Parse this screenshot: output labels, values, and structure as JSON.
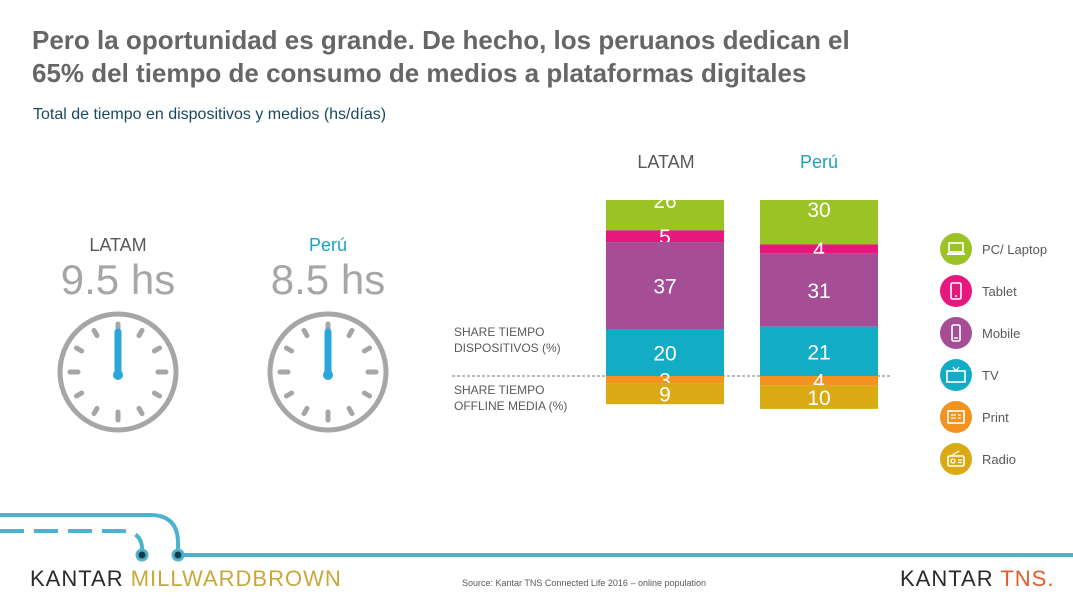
{
  "title_line1": "Pero la oportunidad es grande. De hecho, los peruanos dedican el",
  "title_line2": "65% del tiempo de consumo de medios a plataformas digitales",
  "subtitle": "Total de tiempo en dispositivos y medios  (hs/días)",
  "clocks": [
    {
      "label": "LATAM",
      "hours": "9.5 hs",
      "label_color": "#595959"
    },
    {
      "label": "Perú",
      "hours": "8.5 hs",
      "label_color": "#1aa3bf"
    }
  ],
  "chart_data": {
    "type": "bar",
    "stacked": true,
    "unit": "%",
    "categories": [
      "LATAM",
      "Perú"
    ],
    "series": [
      {
        "name": "PC/ Laptop",
        "color": "#9bc326",
        "values": [
          26,
          30
        ]
      },
      {
        "name": "Tablet",
        "color": "#e6187d",
        "values": [
          5,
          4
        ]
      },
      {
        "name": "Mobile",
        "color": "#a54e96",
        "values": [
          37,
          31
        ]
      },
      {
        "name": "TV",
        "color": "#12acc5",
        "values": [
          20,
          21
        ]
      },
      {
        "name": "Print",
        "color": "#f29220",
        "values": [
          3,
          4
        ]
      },
      {
        "name": "Radio",
        "color": "#d9aa14",
        "values": [
          9,
          10
        ]
      }
    ],
    "group_labels": [
      "SHARE TIEMPO\nDISPOSITIVOS (%)",
      "SHARE TIEMPO\nOFFLINE MEDIA (%)"
    ],
    "category_label_colors": [
      "#595959",
      "#1aa3bf"
    ]
  },
  "legend": [
    {
      "label": "PC/ Laptop",
      "icon": "laptop-icon",
      "color": "#9bc326"
    },
    {
      "label": "Tablet",
      "icon": "tablet-icon",
      "color": "#e6187d"
    },
    {
      "label": "Mobile",
      "icon": "mobile-icon",
      "color": "#a54e96"
    },
    {
      "label": "TV",
      "icon": "tv-icon",
      "color": "#12acc5"
    },
    {
      "label": "Print",
      "icon": "newspaper-icon",
      "color": "#f29220"
    },
    {
      "label": "Radio",
      "icon": "radio-icon",
      "color": "#d9aa14"
    }
  ],
  "footer": {
    "source": "Source: Kantar TNS Connected Life 2016 – online population",
    "brand_left_a": "KANTAR ",
    "brand_left_b": "MILLWARDBROWN",
    "brand_right_a": "KANTAR ",
    "brand_right_b": "TNS."
  },
  "colors": {
    "title": "#666666",
    "accent_blue": "#1aa3bf",
    "clock_hand": "#2aa6dc",
    "clock_face": "#a6a6a6",
    "line": "#4cb3cf"
  }
}
